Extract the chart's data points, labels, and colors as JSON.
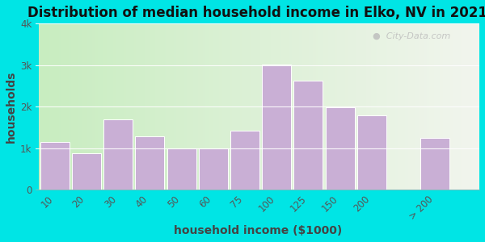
{
  "title": "Distribution of median household income in Elko, NV in 2021",
  "xlabel": "household income ($1000)",
  "ylabel": "households",
  "categories": [
    "10",
    "20",
    "30",
    "40",
    "50",
    "60",
    "75",
    "100",
    "125",
    "150",
    "200",
    "> 200"
  ],
  "values": [
    1150,
    880,
    1700,
    1280,
    1000,
    1000,
    1420,
    3020,
    2620,
    1980,
    1790,
    1260
  ],
  "bar_color": "#c9afd5",
  "bar_edge_color": "#ffffff",
  "ylim": [
    0,
    4000
  ],
  "yticks": [
    0,
    1000,
    2000,
    3000,
    4000
  ],
  "ytick_labels": [
    "0",
    "1k",
    "2k",
    "3k",
    "4k"
  ],
  "bg_color_left": "#c8edc0",
  "bg_color_right": "#f2f5ee",
  "outer_bg": "#00e5e5",
  "title_fontsize": 12,
  "axis_label_fontsize": 10,
  "watermark_text": " City-Data.com",
  "figsize": [
    6.0,
    3.0
  ],
  "dpi": 100,
  "bar_positions": [
    0,
    1,
    2,
    3,
    4,
    5,
    6,
    7,
    8,
    9,
    10,
    12
  ],
  "bar_widths": [
    0.92,
    0.92,
    0.92,
    0.92,
    0.92,
    0.92,
    0.92,
    0.92,
    0.92,
    0.92,
    0.92,
    0.92
  ]
}
